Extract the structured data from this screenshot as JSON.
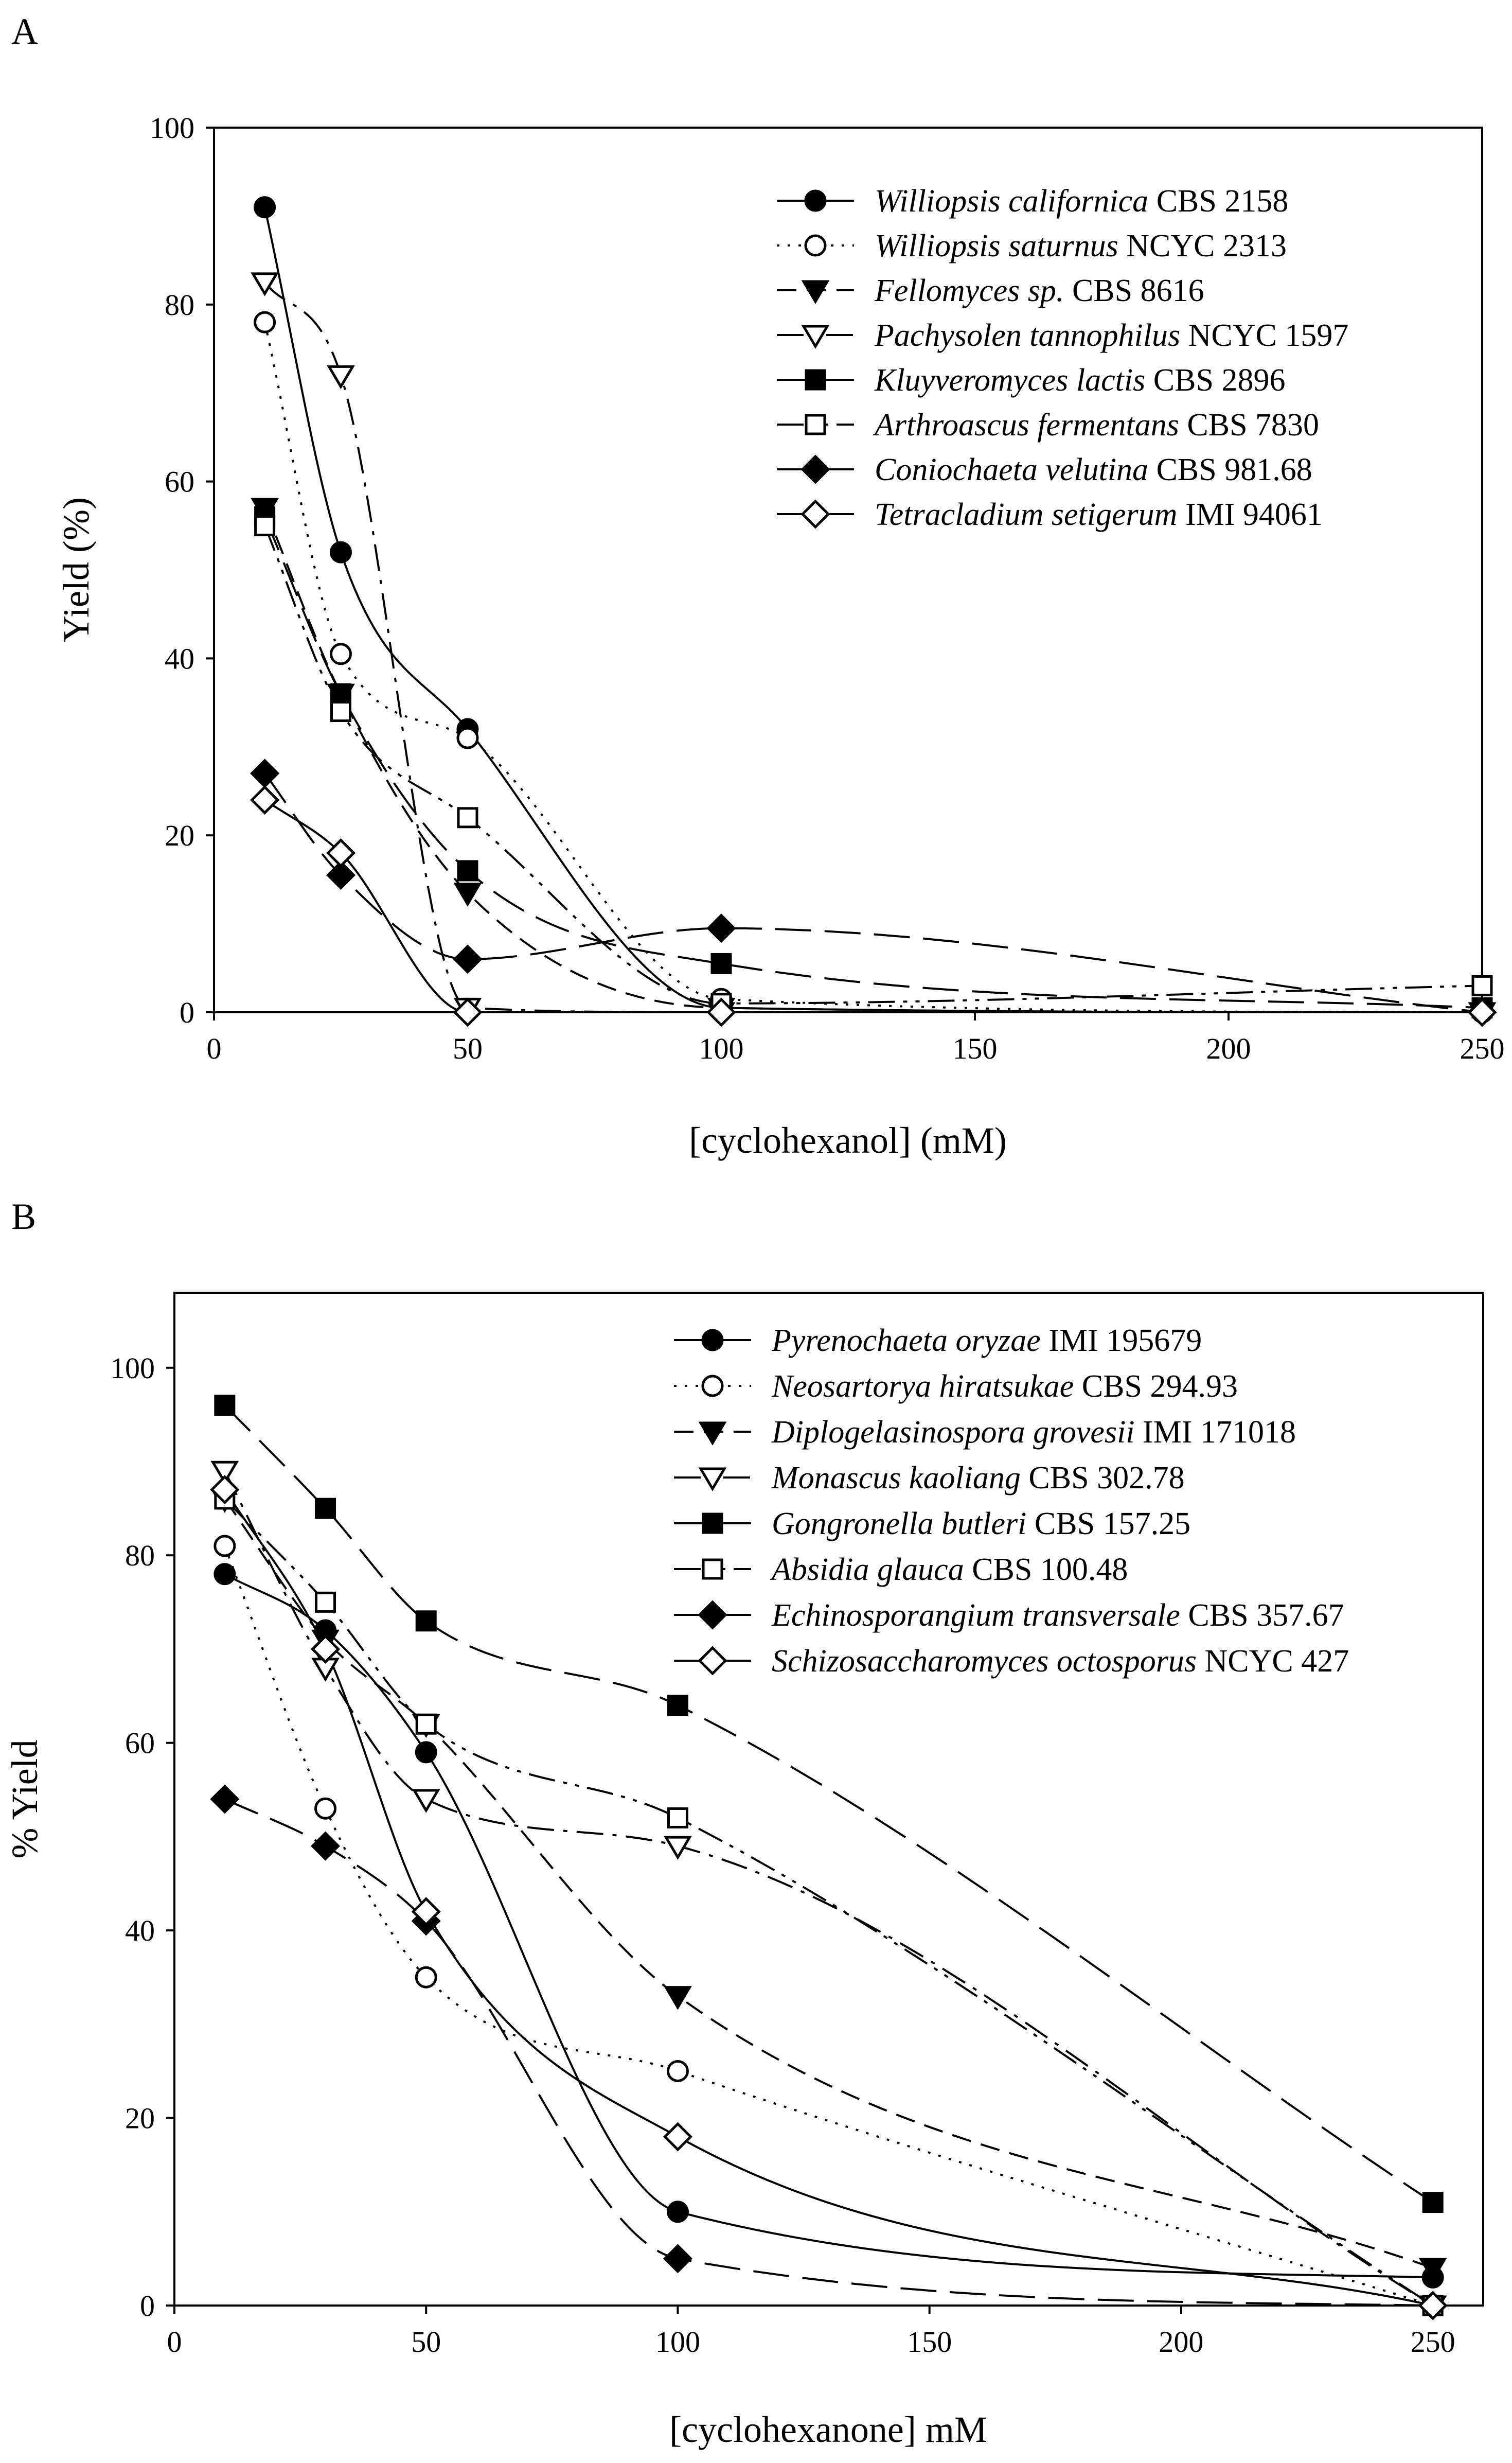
{
  "chart_data": [
    {
      "panel_label": "A",
      "type": "line",
      "title": "",
      "xlabel": "[cyclohexanol] (mM)",
      "ylabel": "Yield (%)",
      "xlim": [
        0,
        250
      ],
      "ylim": [
        0,
        100
      ],
      "xticks": [
        0,
        50,
        100,
        150,
        200,
        250
      ],
      "yticks": [
        0,
        20,
        40,
        60,
        80,
        100
      ],
      "x_tick_labels": [
        "0",
        "50",
        "100",
        "150",
        "200",
        "250"
      ],
      "y_tick_labels": [
        "0",
        "20",
        "40",
        "60",
        "80",
        "100"
      ],
      "grid": false,
      "legend_position": "top-right",
      "x": [
        10,
        25,
        50,
        100,
        250
      ],
      "series": [
        {
          "name": "Williopsis californica",
          "strain": "CBS 2158",
          "marker": "circle-filled",
          "dash": "solid",
          "values": [
            91,
            52,
            32,
            0.5,
            0
          ]
        },
        {
          "name": "Williopsis saturnus",
          "strain": "NCYC 2313",
          "marker": "circle-open",
          "dash": "dotted",
          "values": [
            78,
            40.5,
            31,
            1.5,
            0
          ]
        },
        {
          "name": "Fellomyces sp.",
          "strain": "CBS 8616",
          "marker": "triangle-down-filled",
          "dash": "dashed",
          "values": [
            57,
            36,
            13.5,
            0.5,
            0
          ]
        },
        {
          "name": "Pachysolen tannophilus",
          "strain": "NCYC 1597",
          "marker": "triangle-down-open",
          "dash": "dashdot",
          "values": [
            82.5,
            72,
            0.5,
            0,
            0
          ]
        },
        {
          "name": "Kluyveromyces lactis",
          "strain": "CBS 2896",
          "marker": "square-filled",
          "dash": "longdash",
          "values": [
            56,
            36,
            16,
            5.5,
            0.5
          ]
        },
        {
          "name": "Arthroascus fermentans",
          "strain": "CBS 7830",
          "marker": "square-open",
          "dash": "dashdotdot",
          "values": [
            55,
            34,
            22,
            1,
            3
          ]
        },
        {
          "name": "Coniochaeta velutina",
          "strain": "CBS 981.68",
          "marker": "diamond-filled",
          "dash": "longdash",
          "values": [
            27,
            15.5,
            6,
            9.5,
            0
          ]
        },
        {
          "name": "Tetracladium setigerum",
          "strain": "IMI 94061",
          "marker": "diamond-open",
          "dash": "solid",
          "values": [
            24,
            18,
            0,
            0,
            0
          ]
        }
      ]
    },
    {
      "panel_label": "B",
      "type": "line",
      "title": "",
      "xlabel": "[cyclohexanone] mM",
      "ylabel": "% Yield",
      "xlim": [
        0,
        260
      ],
      "ylim": [
        0,
        108
      ],
      "xticks": [
        0,
        50,
        100,
        150,
        200,
        250
      ],
      "yticks": [
        0,
        20,
        40,
        60,
        80,
        100
      ],
      "x_tick_labels": [
        "0",
        "50",
        "100",
        "150",
        "200",
        "250"
      ],
      "y_tick_labels": [
        "0",
        "20",
        "40",
        "60",
        "80",
        "100"
      ],
      "grid": false,
      "legend_position": "top-right",
      "x": [
        10,
        30,
        50,
        100,
        250
      ],
      "series": [
        {
          "name": "Pyrenochaeta oryzae",
          "strain": "IMI 195679",
          "marker": "circle-filled",
          "dash": "solid",
          "values": [
            78,
            72,
            59,
            10,
            3
          ]
        },
        {
          "name": "Neosartorya hiratsukae",
          "strain": "CBS 294.93",
          "marker": "circle-open",
          "dash": "dotted",
          "values": [
            81,
            53,
            35,
            25,
            0
          ]
        },
        {
          "name": "Diplogelasinospora grovesii",
          "strain": "IMI 171018",
          "marker": "triangle-down-filled",
          "dash": "dashed",
          "values": [
            86,
            71,
            62,
            33,
            4
          ]
        },
        {
          "name": "Monascus kaoliang",
          "strain": "CBS 302.78",
          "marker": "triangle-down-open",
          "dash": "dashdot",
          "values": [
            89,
            68,
            54,
            49,
            0
          ]
        },
        {
          "name": "Gongronella butleri",
          "strain": "CBS 157.25",
          "marker": "square-filled",
          "dash": "longdash",
          "values": [
            96,
            85,
            73,
            64,
            11
          ]
        },
        {
          "name": "Absidia glauca",
          "strain": "CBS 100.48",
          "marker": "square-open",
          "dash": "dashdotdot",
          "values": [
            86,
            75,
            62,
            52,
            0
          ]
        },
        {
          "name": "Echinosporangium transversale",
          "strain": "CBS 357.67",
          "marker": "diamond-filled",
          "dash": "longdash",
          "values": [
            54,
            49,
            41,
            5,
            0
          ]
        },
        {
          "name": "Schizosaccharomyces octosporus",
          "strain": "NCYC 427",
          "marker": "diamond-open",
          "dash": "solid",
          "values": [
            87,
            70,
            42,
            18,
            0
          ]
        }
      ]
    }
  ]
}
